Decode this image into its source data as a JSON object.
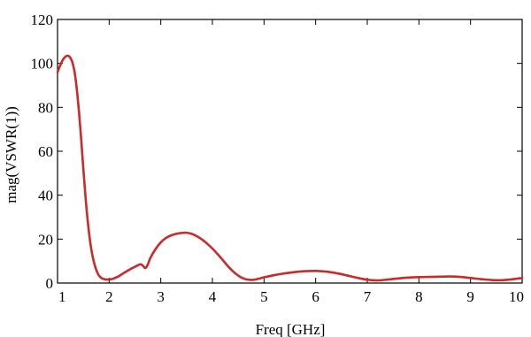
{
  "chart_data": {
    "type": "line",
    "xlabel": "Freq [GHz]",
    "ylabel": "mag(VSWR(1))",
    "xlim": [
      1,
      10
    ],
    "ylim": [
      0,
      120
    ],
    "xticks": [
      1,
      2,
      3,
      4,
      5,
      6,
      7,
      8,
      9,
      10
    ],
    "yticks": [
      0,
      20,
      40,
      60,
      80,
      100,
      120
    ],
    "grid": false,
    "series": [
      {
        "color": "#cc2a2a",
        "x": [
          1.0,
          1.05,
          1.1,
          1.15,
          1.2,
          1.25,
          1.3,
          1.35,
          1.4,
          1.45,
          1.5,
          1.55,
          1.6,
          1.65,
          1.7,
          1.75,
          1.8,
          1.85,
          1.9,
          1.95,
          2.0,
          2.05,
          2.1,
          2.2,
          2.3,
          2.4,
          2.5,
          2.6,
          2.65,
          2.7,
          2.75,
          2.8,
          2.9,
          3.0,
          3.1,
          3.2,
          3.3,
          3.4,
          3.5,
          3.6,
          3.7,
          3.8,
          3.9,
          4.0,
          4.1,
          4.2,
          4.3,
          4.4,
          4.5,
          4.6,
          4.7,
          4.8,
          4.9,
          5.0,
          5.2,
          5.4,
          5.6,
          5.8,
          6.0,
          6.2,
          6.4,
          6.6,
          6.8,
          7.0,
          7.2,
          7.4,
          7.6,
          7.8,
          8.0,
          8.2,
          8.4,
          8.6,
          8.8,
          9.0,
          9.2,
          9.4,
          9.6,
          9.8,
          10.0
        ],
        "y": [
          96,
          99,
          101.5,
          103,
          103.5,
          102.5,
          99.5,
          93,
          82,
          68,
          52,
          37,
          25,
          16,
          10,
          6,
          3.5,
          2.3,
          1.8,
          1.6,
          1.6,
          1.8,
          2.2,
          3.3,
          4.8,
          6.2,
          7.4,
          8.5,
          8.0,
          6.8,
          8.5,
          11.5,
          15.5,
          18.5,
          20.5,
          21.7,
          22.4,
          22.8,
          22.9,
          22.4,
          21.3,
          19.8,
          17.9,
          15.7,
          13.2,
          10.5,
          7.7,
          5.3,
          3.4,
          2.1,
          1.5,
          1.5,
          2.0,
          2.6,
          3.6,
          4.4,
          5.0,
          5.4,
          5.5,
          5.2,
          4.5,
          3.5,
          2.4,
          1.5,
          1.2,
          1.6,
          2.1,
          2.5,
          2.7,
          2.8,
          2.9,
          3.0,
          2.8,
          2.3,
          1.8,
          1.4,
          1.3,
          1.7,
          2.3
        ]
      }
    ]
  }
}
